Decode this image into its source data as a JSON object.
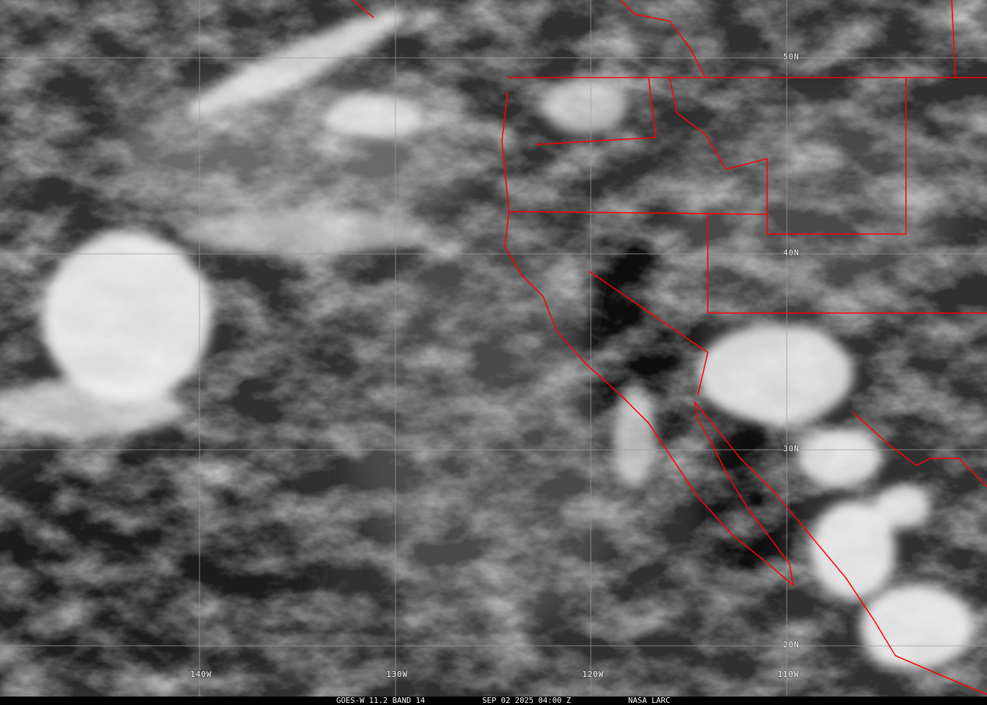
{
  "image": {
    "satellite": "GOES-W",
    "caption": {
      "product": "GOES-W 11.2 BAND 14",
      "datetime": "SEP 02 2025 04:00 Z",
      "source": "NASA LARC"
    },
    "grid": {
      "longitude_labels": [
        "140W",
        "130W",
        "120W",
        "110W"
      ],
      "latitude_labels": [
        "50N",
        "40N",
        "30N",
        "20N"
      ]
    },
    "colors": {
      "borders": "#ff0000",
      "grid": "#aaaaaa",
      "background": "#2a2a2a"
    }
  }
}
